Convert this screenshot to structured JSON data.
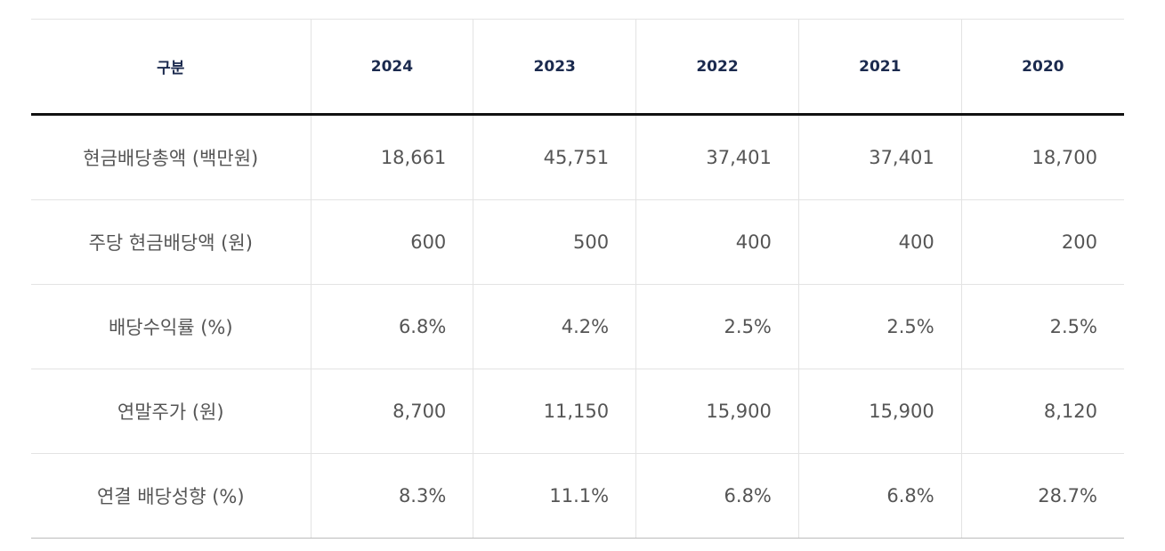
{
  "table": {
    "header": [
      "구분",
      "2024",
      "2023",
      "2022",
      "2021",
      "2020"
    ],
    "rows": [
      [
        "현금배당총액 (백만원)",
        "18,661",
        "45,751",
        "37,401",
        "37,401",
        "18,700"
      ],
      [
        "주당 현금배당액 (원)",
        "600",
        "500",
        "400",
        "400",
        "200"
      ],
      [
        "배당수익률 (%)",
        "6.8%",
        "4.2%",
        "2.5%",
        "2.5%",
        "2.5%"
      ],
      [
        "연말주가 (원)",
        "8,700",
        "11,150",
        "15,900",
        "15,900",
        "8,120"
      ],
      [
        "연결 배당성향 (%)",
        "8.3%",
        "11.1%",
        "6.8%",
        "6.8%",
        "28.7%"
      ]
    ]
  }
}
